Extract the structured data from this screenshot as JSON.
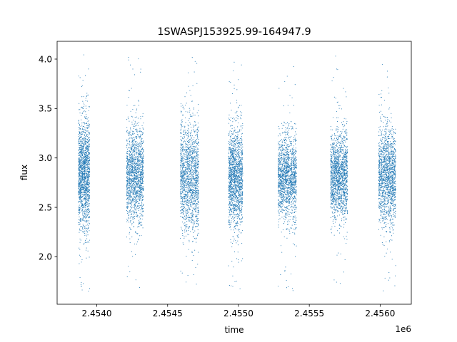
{
  "chart_data": {
    "type": "scatter",
    "title": "1SWASPJ153925.99-164947.9",
    "xlabel": "time",
    "ylabel": "flux",
    "x_offset_label": "1e6",
    "xlim": [
      2.45372,
      2.45622
    ],
    "ylim": [
      1.52,
      4.18
    ],
    "x_ticks": [
      2.454,
      2.4545,
      2.455,
      2.4555,
      2.456
    ],
    "x_tick_labels": [
      "2.4540",
      "2.4545",
      "2.4550",
      "2.4555",
      "2.4560"
    ],
    "y_ticks": [
      2.0,
      2.5,
      3.0,
      3.5,
      4.0
    ],
    "y_tick_labels": [
      "2.0",
      "2.5",
      "3.0",
      "3.5",
      "4.0"
    ],
    "grid": false,
    "marker_color": "#1f77b4",
    "seasons": [
      {
        "x_start": 2.45387,
        "x_end": 2.45395,
        "flux_center": 2.85,
        "flux_spread": 0.28,
        "flux_min": 1.63,
        "flux_max": 4.07
      },
      {
        "x_start": 2.45421,
        "x_end": 2.45433,
        "flux_center": 2.82,
        "flux_spread": 0.24,
        "flux_min": 1.67,
        "flux_max": 4.02
      },
      {
        "x_start": 2.45459,
        "x_end": 2.45472,
        "flux_center": 2.8,
        "flux_spread": 0.27,
        "flux_min": 1.66,
        "flux_max": 4.05
      },
      {
        "x_start": 2.45493,
        "x_end": 2.45503,
        "flux_center": 2.8,
        "flux_spread": 0.25,
        "flux_min": 1.64,
        "flux_max": 4.0
      },
      {
        "x_start": 2.45528,
        "x_end": 2.45541,
        "flux_center": 2.8,
        "flux_spread": 0.22,
        "flux_min": 1.65,
        "flux_max": 3.95
      },
      {
        "x_start": 2.45565,
        "x_end": 2.45577,
        "flux_center": 2.82,
        "flux_spread": 0.21,
        "flux_min": 1.7,
        "flux_max": 4.03
      },
      {
        "x_start": 2.45599,
        "x_end": 2.45611,
        "flux_center": 2.82,
        "flux_spread": 0.24,
        "flux_min": 1.65,
        "flux_max": 3.95
      }
    ]
  }
}
